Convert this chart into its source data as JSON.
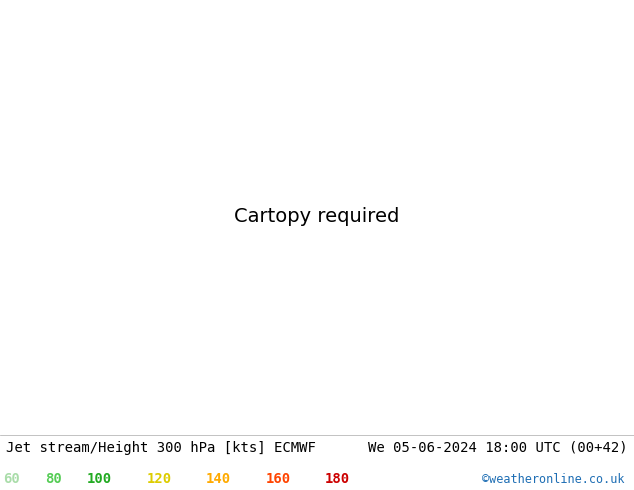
{
  "title_left": "Jet stream/Height 300 hPa [kts] ECMWF",
  "title_right": "We 05-06-2024 18:00 UTC (00+42)",
  "copyright": "©weatheronline.co.uk",
  "legend_values": [
    60,
    80,
    100,
    120,
    140,
    160,
    180
  ],
  "legend_colors": [
    "#aaddaa",
    "#55cc55",
    "#22aa22",
    "#ddcc00",
    "#ffaa00",
    "#ff4400",
    "#cc0000"
  ],
  "land_color": "#c8e8a0",
  "sea_color": "#d8d8d8",
  "jet_colors_list": [
    "#c8eec8",
    "#88dd88",
    "#33bb33",
    "#ddcc00",
    "#ffaa00",
    "#ff4400",
    "#cc0000"
  ],
  "jet_levels": [
    60,
    80,
    100,
    120,
    140,
    160,
    180,
    999
  ],
  "bottom_bar_color": "#e0e0e0",
  "title_fontsize": 10,
  "legend_fontsize": 10,
  "copyright_color": "#1e6eb4",
  "fig_width": 6.34,
  "fig_height": 4.9,
  "map_extent": [
    -45,
    60,
    25,
    75
  ],
  "proj_lat": 50,
  "proj_lon": 10
}
